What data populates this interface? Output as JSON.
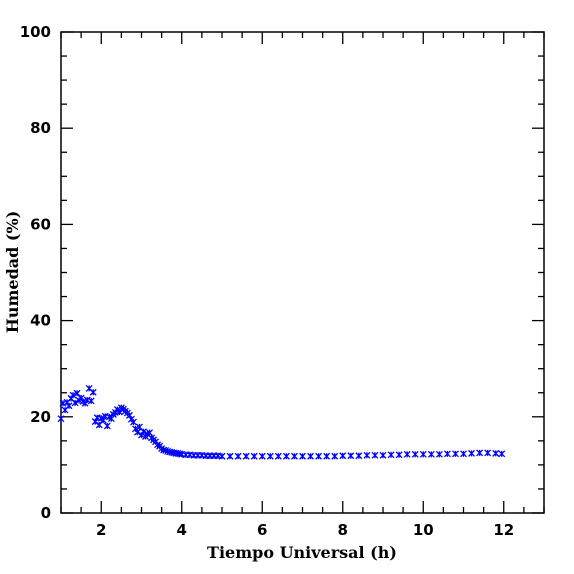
{
  "chart_data": {
    "type": "scatter",
    "title": "",
    "xlabel": "Tiempo Universal (h)",
    "ylabel": "Humedad (%)",
    "xlim": [
      1,
      13
    ],
    "ylim": [
      0,
      100
    ],
    "xticks": [
      2,
      4,
      6,
      8,
      10,
      12
    ],
    "yticks": [
      0,
      20,
      40,
      60,
      80,
      100
    ],
    "grid": false,
    "legend": "none",
    "marker": "x",
    "color": "#0000ff",
    "series": [
      {
        "x": [
          1.0,
          1.05,
          1.1,
          1.15,
          1.2,
          1.25,
          1.3,
          1.35,
          1.4,
          1.45,
          1.5,
          1.55,
          1.6,
          1.65,
          1.7,
          1.75,
          1.8,
          1.85,
          1.9,
          1.95,
          2.0,
          2.05,
          2.1,
          2.15,
          2.2,
          2.25,
          2.3,
          2.35,
          2.4,
          2.45,
          2.5,
          2.55,
          2.6,
          2.65,
          2.7,
          2.75,
          2.8,
          2.85,
          2.9,
          2.95,
          3.0,
          3.05,
          3.1,
          3.15,
          3.2,
          3.25,
          3.3,
          3.35,
          3.4,
          3.45,
          3.5,
          3.55,
          3.6,
          3.65,
          3.7,
          3.75,
          3.8,
          3.85,
          3.9,
          3.95,
          4.0,
          4.1,
          4.2,
          4.3,
          4.4,
          4.5,
          4.6,
          4.7,
          4.8,
          4.9,
          5.0,
          5.2,
          5.4,
          5.6,
          5.8,
          6.0,
          6.2,
          6.4,
          6.6,
          6.8,
          7.0,
          7.2,
          7.4,
          7.6,
          7.8,
          8.0,
          8.2,
          8.4,
          8.6,
          8.8,
          9.0,
          9.2,
          9.4,
          9.6,
          9.8,
          10.0,
          10.2,
          10.4,
          10.6,
          10.8,
          11.0,
          11.2,
          11.4,
          11.6,
          11.8,
          11.95
        ],
        "y": [
          19.6,
          22.8,
          21.4,
          23.0,
          22.3,
          23.8,
          24.5,
          22.9,
          24.9,
          23.4,
          23.9,
          23.2,
          22.8,
          23.5,
          25.9,
          23.3,
          25.1,
          19.0,
          19.8,
          18.3,
          19.7,
          19.3,
          20.1,
          18.1,
          20.0,
          19.6,
          20.5,
          20.9,
          21.5,
          21.0,
          21.9,
          21.6,
          21.2,
          20.8,
          20.3,
          19.5,
          18.9,
          17.5,
          16.8,
          17.9,
          16.2,
          16.9,
          15.9,
          16.4,
          16.7,
          15.6,
          15.2,
          14.8,
          14.2,
          13.9,
          13.4,
          13.1,
          13.0,
          12.8,
          12.7,
          12.6,
          12.5,
          12.4,
          12.4,
          12.3,
          12.2,
          12.1,
          12.1,
          12.0,
          12.0,
          12.0,
          11.9,
          11.9,
          11.9,
          11.9,
          11.8,
          11.8,
          11.8,
          11.8,
          11.8,
          11.8,
          11.8,
          11.8,
          11.8,
          11.8,
          11.8,
          11.8,
          11.8,
          11.8,
          11.8,
          11.9,
          11.9,
          11.9,
          12.0,
          12.0,
          12.0,
          12.1,
          12.1,
          12.2,
          12.2,
          12.2,
          12.2,
          12.2,
          12.3,
          12.3,
          12.3,
          12.4,
          12.5,
          12.5,
          12.4,
          12.3
        ]
      }
    ]
  }
}
